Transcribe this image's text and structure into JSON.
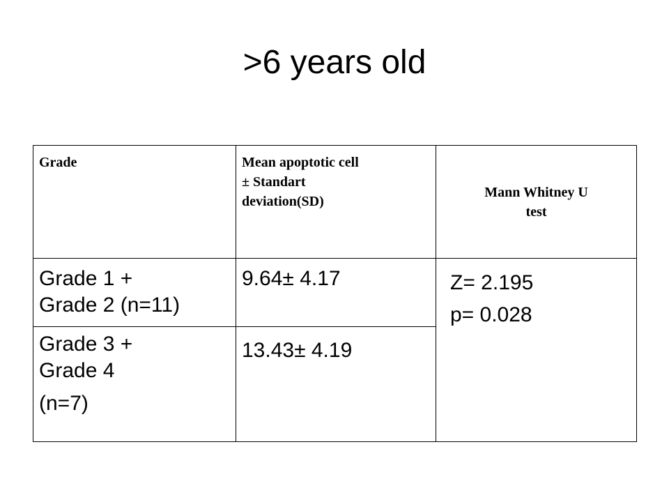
{
  "title": ">6 years old",
  "table": {
    "header": [
      [
        "Grade"
      ],
      [
        "Mean apoptotic cell",
        "± Standart",
        "deviation(SD)"
      ],
      [
        "Mann Whitney U",
        "test"
      ]
    ],
    "rows": [
      [
        [
          "Grade 1 +",
          "Grade 2 (n=11)"
        ],
        [
          "9.64± 4.17"
        ]
      ],
      [
        [
          "Grade 3 +",
          "Grade 4",
          "(n=7)"
        ],
        [
          "13.43± 4.19"
        ]
      ]
    ],
    "test": [
      "Z= 2.195",
      "p= 0.028"
    ]
  }
}
